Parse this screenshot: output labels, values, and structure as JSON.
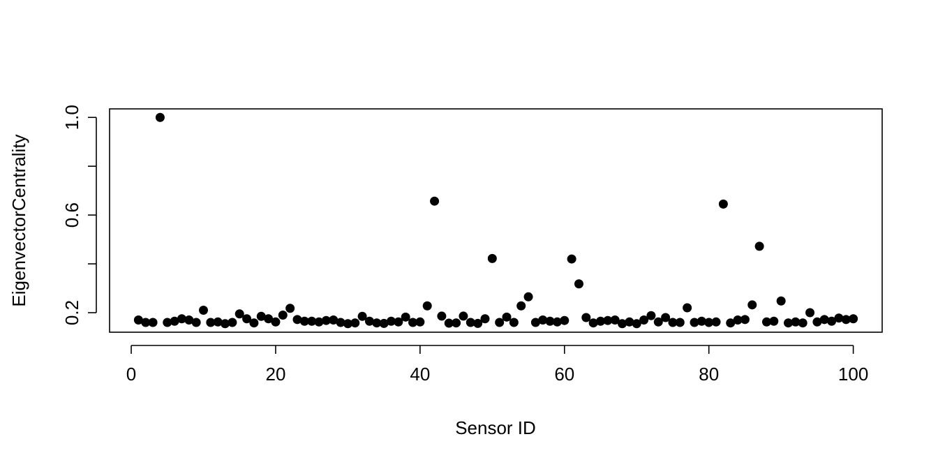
{
  "chart_data": {
    "type": "scatter",
    "title": "",
    "xlabel": "Sensor ID",
    "ylabel": "EigenvectorCentrality",
    "xlim": [
      -3,
      104
    ],
    "ylim": [
      0.12,
      1.035
    ],
    "x_ticks": [
      0,
      20,
      40,
      60,
      80,
      100
    ],
    "x_tick_labels": [
      "0",
      "20",
      "40",
      "60",
      "80",
      "100"
    ],
    "y_ticks": [
      0.2,
      0.4,
      0.6,
      0.8,
      1.0
    ],
    "y_tick_labels": [
      "0.2",
      "",
      "0.6",
      "",
      "1.0"
    ],
    "grid": false,
    "point_color": "#000000",
    "series": [
      {
        "x": [
          1,
          2,
          3,
          4,
          5,
          6,
          7,
          8,
          9,
          10,
          11,
          12,
          13,
          14,
          15,
          16,
          17,
          18,
          19,
          20,
          21,
          22,
          23,
          24,
          25,
          26,
          27,
          28,
          29,
          30,
          31,
          32,
          33,
          34,
          35,
          36,
          37,
          38,
          39,
          40,
          41,
          42,
          43,
          44,
          45,
          46,
          47,
          48,
          49,
          50,
          51,
          52,
          53,
          54,
          55,
          56,
          57,
          58,
          59,
          60,
          61,
          62,
          63,
          64,
          65,
          66,
          67,
          68,
          69,
          70,
          71,
          72,
          73,
          74,
          75,
          76,
          77,
          78,
          79,
          80,
          81,
          82,
          83,
          84,
          85,
          86,
          87,
          88,
          89,
          90,
          91,
          92,
          93,
          94,
          95,
          96,
          97,
          98,
          99,
          100
        ],
        "y": [
          0.17,
          0.16,
          0.16,
          1.0,
          0.16,
          0.165,
          0.175,
          0.17,
          0.16,
          0.21,
          0.16,
          0.162,
          0.155,
          0.16,
          0.195,
          0.175,
          0.158,
          0.185,
          0.175,
          0.162,
          0.19,
          0.218,
          0.172,
          0.165,
          0.165,
          0.162,
          0.168,
          0.17,
          0.16,
          0.155,
          0.158,
          0.185,
          0.165,
          0.158,
          0.156,
          0.165,
          0.162,
          0.182,
          0.16,
          0.162,
          0.228,
          0.657,
          0.186,
          0.157,
          0.158,
          0.186,
          0.16,
          0.156,
          0.175,
          0.422,
          0.16,
          0.182,
          0.16,
          0.228,
          0.265,
          0.16,
          0.17,
          0.165,
          0.162,
          0.168,
          0.42,
          0.318,
          0.18,
          0.158,
          0.165,
          0.168,
          0.17,
          0.155,
          0.162,
          0.155,
          0.17,
          0.188,
          0.162,
          0.18,
          0.16,
          0.16,
          0.22,
          0.16,
          0.165,
          0.16,
          0.162,
          0.645,
          0.158,
          0.17,
          0.172,
          0.232,
          0.472,
          0.162,
          0.165,
          0.248,
          0.158,
          0.162,
          0.158,
          0.2,
          0.162,
          0.172,
          0.165,
          0.178,
          0.172,
          0.175
        ]
      }
    ]
  }
}
